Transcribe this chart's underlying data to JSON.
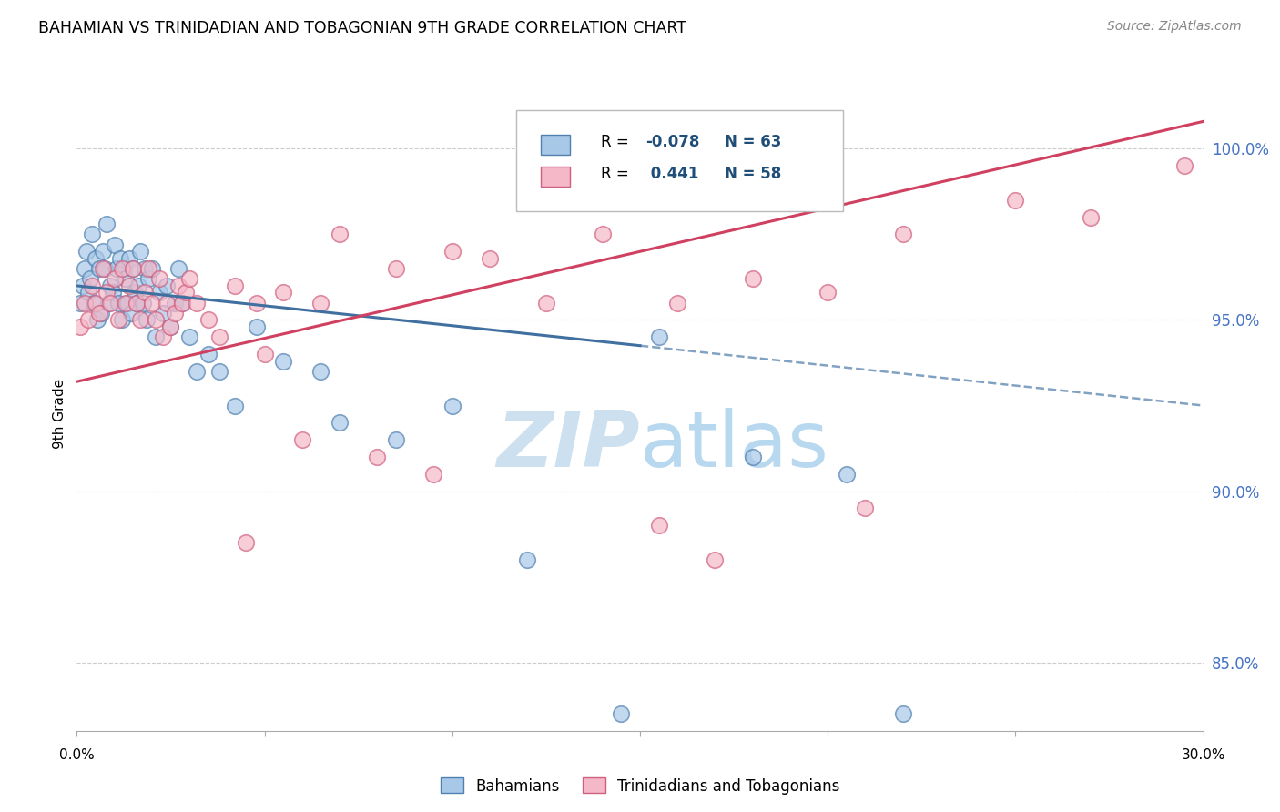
{
  "title": "BAHAMIAN VS TRINIDADIAN AND TOBAGONIAN 9TH GRADE CORRELATION CHART",
  "source": "Source: ZipAtlas.com",
  "ylabel": "9th Grade",
  "xlim": [
    0.0,
    30.0
  ],
  "ylim": [
    83.0,
    101.5
  ],
  "ytick_vals": [
    85.0,
    90.0,
    95.0,
    100.0
  ],
  "ytick_labels": [
    "85.0%",
    "90.0%",
    "95.0%",
    "100.0%"
  ],
  "blue_color": "#a8c8e8",
  "pink_color": "#f4b8c8",
  "blue_edge_color": "#5080b0",
  "pink_edge_color": "#d06080",
  "blue_line_color": "#4070a0",
  "pink_line_color": "#d04060",
  "watermark_zip": "ZIP",
  "watermark_atlas": "atlas",
  "watermark_color": "#cce0f0",
  "label_blue": "Bahamians",
  "label_pink": "Trinidadians and Tobagonians",
  "blue_x": [
    0.1,
    0.15,
    0.2,
    0.25,
    0.3,
    0.35,
    0.4,
    0.45,
    0.5,
    0.55,
    0.6,
    0.65,
    0.7,
    0.75,
    0.8,
    0.85,
    0.9,
    0.95,
    1.0,
    1.05,
    1.1,
    1.15,
    1.2,
    1.25,
    1.3,
    1.35,
    1.4,
    1.45,
    1.5,
    1.55,
    1.6,
    1.65,
    1.7,
    1.75,
    1.8,
    1.85,
    1.9,
    2.0,
    2.1,
    2.2,
    2.3,
    2.4,
    2.5,
    2.6,
    2.7,
    2.8,
    3.0,
    3.2,
    3.5,
    3.8,
    4.2,
    4.8,
    5.5,
    6.5,
    7.0,
    8.5,
    10.0,
    12.0,
    14.5,
    15.5,
    18.0,
    20.5,
    22.0
  ],
  "blue_y": [
    95.5,
    96.0,
    96.5,
    97.0,
    95.8,
    96.2,
    97.5,
    95.5,
    96.8,
    95.0,
    96.5,
    95.2,
    97.0,
    96.5,
    97.8,
    95.5,
    96.0,
    95.8,
    97.2,
    96.5,
    95.5,
    96.8,
    95.0,
    96.5,
    96.2,
    95.5,
    96.8,
    95.2,
    96.5,
    95.8,
    95.5,
    96.0,
    97.0,
    95.5,
    96.5,
    95.0,
    96.2,
    96.5,
    94.5,
    95.8,
    95.2,
    96.0,
    94.8,
    95.5,
    96.5,
    95.5,
    94.5,
    93.5,
    94.0,
    93.5,
    92.5,
    94.8,
    93.8,
    93.5,
    92.0,
    91.5,
    92.5,
    88.0,
    83.5,
    94.5,
    91.0,
    90.5,
    83.5
  ],
  "pink_x": [
    0.1,
    0.2,
    0.3,
    0.4,
    0.5,
    0.6,
    0.7,
    0.8,
    0.9,
    1.0,
    1.1,
    1.2,
    1.3,
    1.4,
    1.5,
    1.6,
    1.7,
    1.8,
    1.9,
    2.0,
    2.1,
    2.2,
    2.3,
    2.4,
    2.5,
    2.6,
    2.7,
    2.8,
    2.9,
    3.0,
    3.2,
    3.5,
    3.8,
    4.2,
    4.8,
    5.5,
    6.5,
    7.0,
    8.5,
    10.0,
    11.0,
    12.5,
    14.0,
    16.0,
    18.0,
    20.0,
    22.0,
    25.0,
    27.0,
    29.5,
    4.5,
    5.0,
    6.0,
    8.0,
    9.5,
    15.5,
    17.0,
    21.0
  ],
  "pink_y": [
    94.8,
    95.5,
    95.0,
    96.0,
    95.5,
    95.2,
    96.5,
    95.8,
    95.5,
    96.2,
    95.0,
    96.5,
    95.5,
    96.0,
    96.5,
    95.5,
    95.0,
    95.8,
    96.5,
    95.5,
    95.0,
    96.2,
    94.5,
    95.5,
    94.8,
    95.2,
    96.0,
    95.5,
    95.8,
    96.2,
    95.5,
    95.0,
    94.5,
    96.0,
    95.5,
    95.8,
    95.5,
    97.5,
    96.5,
    97.0,
    96.8,
    95.5,
    97.5,
    95.5,
    96.2,
    95.8,
    97.5,
    98.5,
    98.0,
    99.5,
    88.5,
    94.0,
    91.5,
    91.0,
    90.5,
    89.0,
    88.0,
    89.5
  ],
  "blue_line_x0": 0.0,
  "blue_line_x1": 30.0,
  "blue_line_y0": 96.0,
  "blue_line_y1": 92.5,
  "blue_solid_x_end": 15.0,
  "pink_line_x0": 0.0,
  "pink_line_x1": 30.0,
  "pink_line_y0": 93.2,
  "pink_line_y1": 100.8
}
